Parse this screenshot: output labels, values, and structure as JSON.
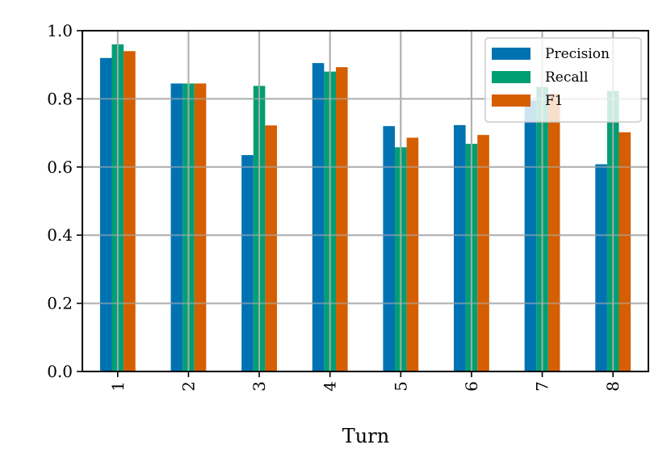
{
  "chart_data": {
    "type": "bar",
    "title": "",
    "xlabel": "Turn",
    "ylabel": "",
    "categories": [
      "1",
      "2",
      "3",
      "4",
      "5",
      "6",
      "7",
      "8"
    ],
    "ylim": [
      0.0,
      1.0
    ],
    "yticks": [
      "0.0",
      "0.2",
      "0.4",
      "0.6",
      "0.8",
      "1.0"
    ],
    "grid": true,
    "legend_position": "top-right",
    "series": [
      {
        "name": "Precision",
        "color": "#0072B2",
        "values": [
          0.92,
          0.845,
          0.635,
          0.905,
          0.72,
          0.723,
          0.795,
          0.608
        ]
      },
      {
        "name": "Recall",
        "color": "#009E73",
        "values": [
          0.96,
          0.845,
          0.838,
          0.88,
          0.658,
          0.668,
          0.835,
          0.823
        ]
      },
      {
        "name": "F1",
        "color": "#D55E00",
        "values": [
          0.94,
          0.845,
          0.722,
          0.893,
          0.686,
          0.694,
          0.815,
          0.702
        ]
      }
    ]
  }
}
